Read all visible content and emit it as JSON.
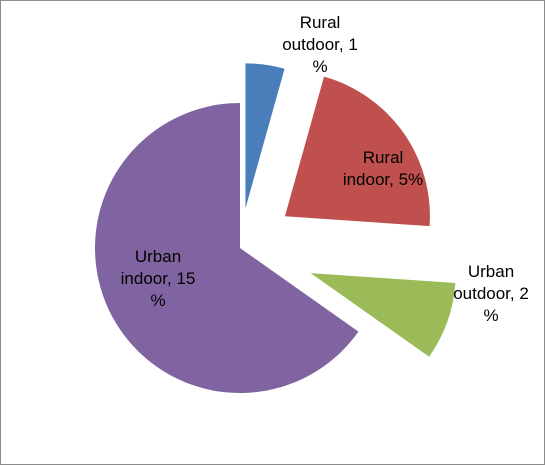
{
  "chart_data": {
    "type": "pie",
    "title": "",
    "slices": [
      {
        "label": "Rural outdoor",
        "label_lines": [
          "Rural",
          "outdoor, 1",
          "%"
        ],
        "value": 1,
        "color": "#4a7ebb",
        "label_inside": false
      },
      {
        "label": "Rural indoor",
        "label_lines": [
          "Rural",
          "indoor, 5%"
        ],
        "value": 5,
        "color": "#c0504d",
        "label_inside": true
      },
      {
        "label": "Urban outdoor",
        "label_lines": [
          "Urban",
          "outdoor, 2",
          "%"
        ],
        "value": 2,
        "color": "#9bbb59",
        "label_inside": false
      },
      {
        "label": "Urban indoor",
        "label_lines": [
          "Urban",
          "indoor, 15",
          "%"
        ],
        "value": 15,
        "color": "#8064a2",
        "label_inside": true
      }
    ],
    "exploded": true,
    "legend": "none"
  }
}
